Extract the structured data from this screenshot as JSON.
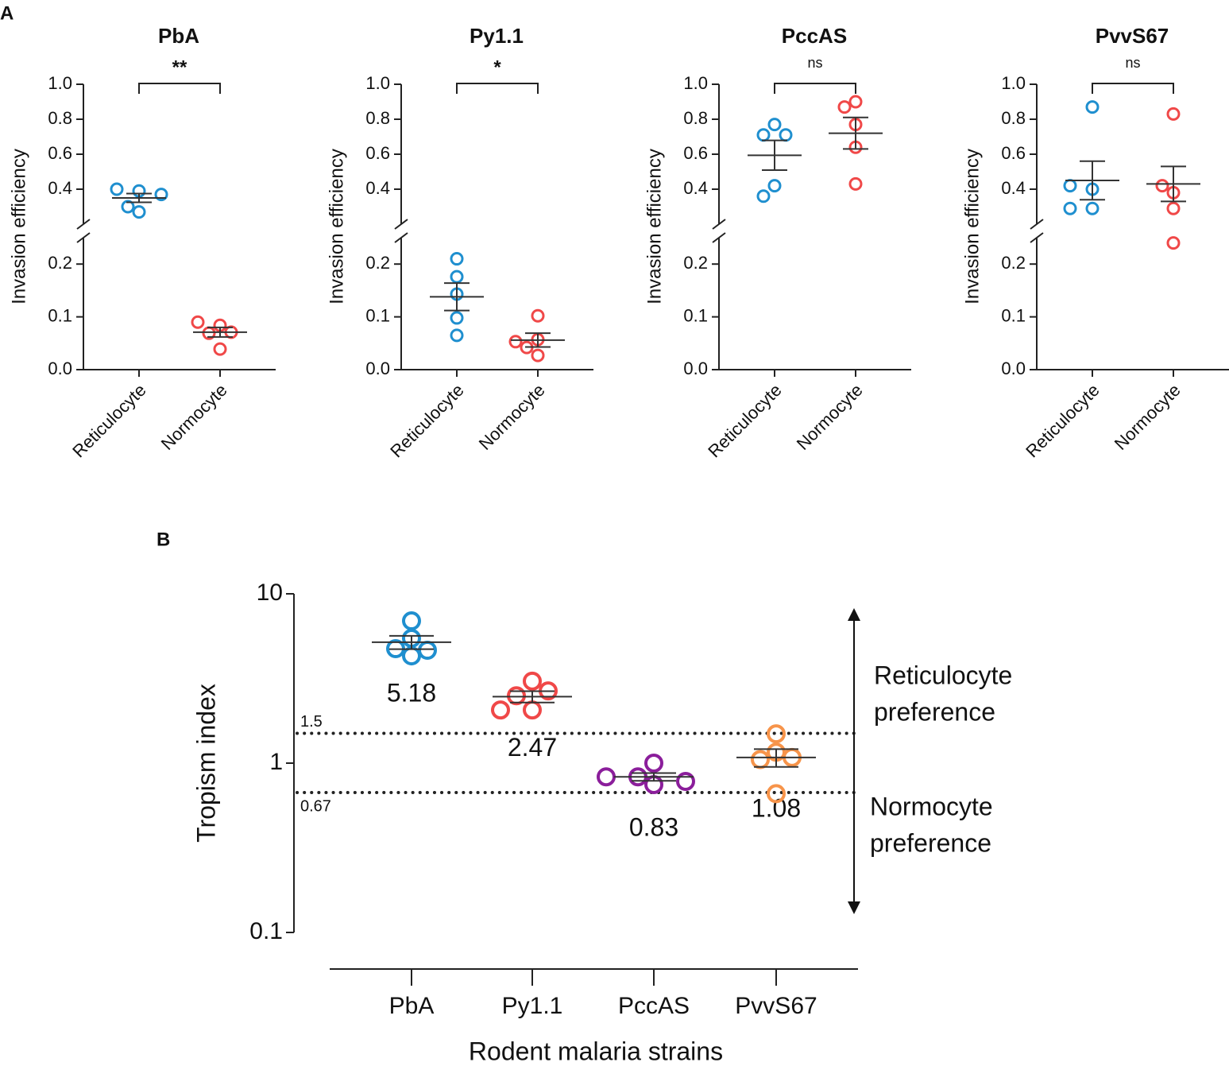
{
  "panel_labels": [
    "A",
    "B"
  ],
  "chart_data": [
    {
      "type": "dot_broken",
      "title": "PbA",
      "significance": "**",
      "ylabel": "Invasion efficiency",
      "categories": [
        "Reticulocyte",
        "Normocyte"
      ],
      "colors": [
        "#1f8fcf",
        "#f04848"
      ],
      "groups": [
        [
          0.39,
          0.27,
          0.4,
          0.3,
          0.37
        ],
        [
          0.084,
          0.09,
          0.069,
          0.039,
          0.071
        ]
      ],
      "means": [
        0.35,
        0.071
      ],
      "errors": [
        0.025,
        0.009
      ],
      "ylim_lower": [
        0,
        0.25
      ],
      "yticks_lower": [
        {
          "value": 0,
          "label": "0.0"
        },
        0.1,
        0.2
      ],
      "ylim_upper": [
        0.2,
        1.0
      ],
      "yticks_upper": [
        0.4,
        0.6,
        0.8,
        {
          "value": 1,
          "label": "1.0"
        }
      ]
    },
    {
      "type": "dot_broken",
      "title": "Py1.1",
      "significance": "*",
      "ylabel": "Invasion efficiency",
      "categories": [
        "Reticulocyte",
        "Normocyte"
      ],
      "colors": [
        "#1f8fcf",
        "#f04848"
      ],
      "groups": [
        [
          0.21,
          0.176,
          0.143,
          0.098,
          0.065
        ],
        [
          0.102,
          0.057,
          0.053,
          0.027,
          0.042
        ]
      ],
      "means": [
        0.138,
        0.056
      ],
      "errors": [
        0.026,
        0.013
      ],
      "ylim_lower": [
        0,
        0.25
      ],
      "yticks_lower": [
        {
          "value": 0,
          "label": "0.0"
        },
        0.1,
        0.2
      ],
      "ylim_upper": [
        0.2,
        1.0
      ],
      "yticks_upper": [
        0.4,
        0.6,
        0.8,
        {
          "value": 1,
          "label": "1.0"
        }
      ]
    },
    {
      "type": "dot_broken",
      "title": "PccAS",
      "significance": "ns",
      "ylabel": "Invasion efficiency",
      "categories": [
        "Reticulocyte",
        "Normocyte"
      ],
      "colors": [
        "#1f8fcf",
        "#f04848"
      ],
      "groups": [
        [
          0.77,
          0.71,
          0.71,
          0.42,
          0.36
        ],
        [
          0.9,
          0.87,
          0.77,
          0.64,
          0.43
        ]
      ],
      "means": [
        0.594,
        0.72
      ],
      "errors": [
        0.085,
        0.09
      ],
      "ylim_lower": [
        0,
        0.25
      ],
      "yticks_lower": [
        {
          "value": 0,
          "label": "0.0"
        },
        0.1,
        0.2
      ],
      "ylim_upper": [
        0.2,
        1.0
      ],
      "yticks_upper": [
        0.4,
        0.6,
        0.8,
        {
          "value": 1,
          "label": "1.0"
        }
      ]
    },
    {
      "type": "dot_broken",
      "title": "PvvS67",
      "significance": "ns",
      "ylabel": "Invasion efficiency",
      "categories": [
        "Reticulocyte",
        "Normocyte"
      ],
      "colors": [
        "#1f8fcf",
        "#f04848"
      ],
      "groups": [
        [
          0.87,
          0.4,
          0.42,
          0.29,
          0.29
        ],
        [
          0.83,
          0.38,
          0.42,
          0.29,
          0.24
        ]
      ],
      "means": [
        0.45,
        0.43
      ],
      "errors": [
        0.11,
        0.1
      ],
      "ylim_lower": [
        0,
        0.25
      ],
      "yticks_lower": [
        {
          "value": 0,
          "label": "0.0"
        },
        0.1,
        0.2
      ],
      "ylim_upper": [
        0.2,
        1.0
      ],
      "yticks_upper": [
        0.4,
        0.6,
        0.8,
        {
          "value": 1,
          "label": "1.0"
        }
      ]
    },
    {
      "type": "dot_log",
      "ylabel": "Tropism index",
      "xlabel": "Rodent malaria strains",
      "categories": [
        "PbA",
        "Py1.1",
        "PccAS",
        "PvvS67"
      ],
      "colors": [
        "#1f8fcf",
        "#f04848",
        "#8b1e9b",
        "#f7944a"
      ],
      "groups": [
        [
          5.46,
          6.92,
          4.74,
          4.64,
          4.3
        ],
        [
          3.05,
          2.06,
          2.5,
          2.67,
          2.06
        ],
        [
          1.0,
          0.747,
          0.83,
          0.78,
          0.83
        ],
        [
          1.49,
          1.16,
          1.05,
          1.08,
          0.66
        ]
      ],
      "means": [
        5.18,
        2.47,
        0.83,
        1.08
      ],
      "errors": [
        0.47,
        0.19,
        0.044,
        0.13
      ],
      "log_y": true,
      "ylim": [
        0.1,
        10
      ],
      "yticks": [
        0.1,
        1,
        10
      ],
      "reference_lines": [
        1.5,
        0.67
      ],
      "annotation_up": [
        "Reticulocyte",
        "preference"
      ],
      "annotation_down": [
        "Normocyte",
        "preference"
      ]
    }
  ]
}
